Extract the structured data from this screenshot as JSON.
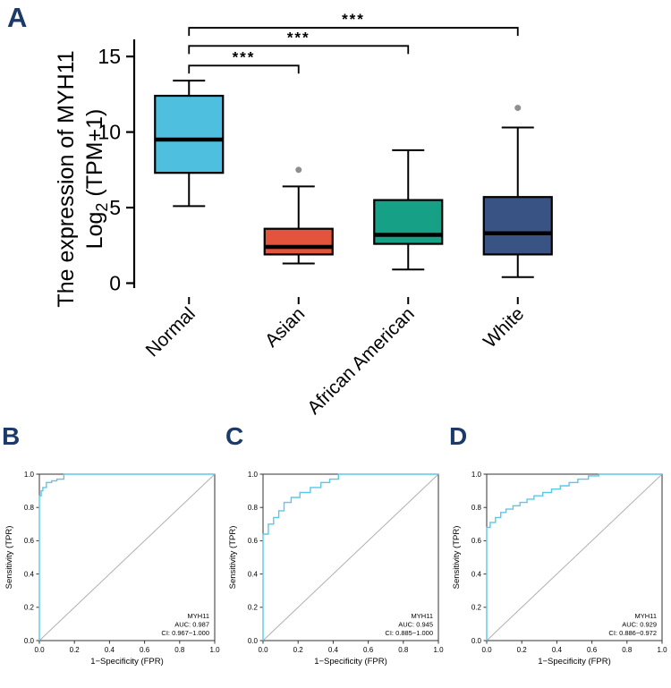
{
  "panels": {
    "a": "A",
    "b": "B",
    "c": "C",
    "d": "D"
  },
  "chart_data": [
    {
      "type": "box",
      "panel": "A",
      "ylabel_line1": "The expression of MYH11",
      "ylabel_line2": {
        "prefix": "Log",
        "sub": "2",
        "suffix": " (TPM+1)"
      },
      "categories": [
        "Normal",
        "Asian",
        "African American",
        "White"
      ],
      "colors": [
        "#4FBFDF",
        "#E2543C",
        "#16A085",
        "#3A5385"
      ],
      "yticks": [
        0,
        5,
        10,
        15
      ],
      "ylim": [
        -0.8,
        17.2
      ],
      "boxes": [
        {
          "min": 5.1,
          "q1": 7.3,
          "median": 9.5,
          "q3": 12.4,
          "max": 13.4,
          "outliers": []
        },
        {
          "min": 1.3,
          "q1": 1.9,
          "median": 2.4,
          "q3": 3.6,
          "max": 6.4,
          "outliers": [
            7.5
          ]
        },
        {
          "min": 0.9,
          "q1": 2.6,
          "median": 3.2,
          "q3": 5.5,
          "max": 8.8,
          "outliers": []
        },
        {
          "min": 0.4,
          "q1": 1.9,
          "median": 3.3,
          "q3": 5.7,
          "max": 10.3,
          "outliers": [
            11.6
          ]
        }
      ],
      "significance": [
        {
          "from": 0,
          "to": 1,
          "label": "***",
          "bracket_y": 14.4
        },
        {
          "from": 0,
          "to": 2,
          "label": "***",
          "bracket_y": 15.7
        },
        {
          "from": 0,
          "to": 3,
          "label": "***",
          "bracket_y": 16.9
        }
      ]
    },
    {
      "type": "line",
      "panel": "B",
      "xlabel": "1−Specificity (FPR)",
      "ylabel": "Sensitivity (TPR)",
      "xticks": [
        0,
        0.2,
        0.4,
        0.6,
        0.8,
        1
      ],
      "yticks": [
        0,
        0.2,
        0.4,
        0.6,
        0.8,
        1
      ],
      "xlim": [
        0,
        1
      ],
      "ylim": [
        0,
        1
      ],
      "diagonal": true,
      "curve_color": "#5BC8E8",
      "legend": {
        "title": "MYH11",
        "auc": "AUC: 0.987",
        "ci": "CI: 0.967−1.000"
      },
      "roc_points": [
        [
          0,
          0
        ],
        [
          0,
          0.87
        ],
        [
          0.01,
          0.87
        ],
        [
          0.01,
          0.9
        ],
        [
          0.02,
          0.9
        ],
        [
          0.02,
          0.92
        ],
        [
          0.04,
          0.92
        ],
        [
          0.04,
          0.95
        ],
        [
          0.07,
          0.95
        ],
        [
          0.07,
          0.96
        ],
        [
          0.1,
          0.96
        ],
        [
          0.1,
          0.97
        ],
        [
          0.14,
          0.97
        ],
        [
          0.14,
          1
        ],
        [
          1,
          1
        ]
      ]
    },
    {
      "type": "line",
      "panel": "C",
      "xlabel": "1−Specificity (FPR)",
      "ylabel": "Sensitivity (TPR)",
      "xticks": [
        0,
        0.2,
        0.4,
        0.6,
        0.8,
        1
      ],
      "yticks": [
        0,
        0.2,
        0.4,
        0.6,
        0.8,
        1
      ],
      "xlim": [
        0,
        1
      ],
      "ylim": [
        0,
        1
      ],
      "diagonal": true,
      "curve_color": "#5BC8E8",
      "legend": {
        "title": "MYH11",
        "auc": "AUC: 0.945",
        "ci": "CI: 0.885−1.000"
      },
      "roc_points": [
        [
          0,
          0
        ],
        [
          0,
          0.64
        ],
        [
          0.03,
          0.64
        ],
        [
          0.03,
          0.7
        ],
        [
          0.06,
          0.7
        ],
        [
          0.06,
          0.74
        ],
        [
          0.09,
          0.74
        ],
        [
          0.09,
          0.78
        ],
        [
          0.12,
          0.78
        ],
        [
          0.12,
          0.83
        ],
        [
          0.16,
          0.83
        ],
        [
          0.16,
          0.86
        ],
        [
          0.21,
          0.86
        ],
        [
          0.21,
          0.89
        ],
        [
          0.27,
          0.89
        ],
        [
          0.27,
          0.92
        ],
        [
          0.33,
          0.92
        ],
        [
          0.33,
          0.95
        ],
        [
          0.38,
          0.95
        ],
        [
          0.38,
          0.97
        ],
        [
          0.43,
          0.97
        ],
        [
          0.43,
          1
        ],
        [
          1,
          1
        ]
      ]
    },
    {
      "type": "line",
      "panel": "D",
      "xlabel": "1−Specificity (FPR)",
      "ylabel": "Sensitivity (TPR)",
      "xticks": [
        0,
        0.2,
        0.4,
        0.6,
        0.8,
        1
      ],
      "yticks": [
        0,
        0.2,
        0.4,
        0.6,
        0.8,
        1
      ],
      "xlim": [
        0,
        1
      ],
      "ylim": [
        0,
        1
      ],
      "diagonal": true,
      "curve_color": "#5BC8E8",
      "legend": {
        "title": "MYH11",
        "auc": "AUC: 0.929",
        "ci": "CI: 0.886−0.972"
      },
      "roc_points": [
        [
          0,
          0
        ],
        [
          0,
          0.68
        ],
        [
          0.02,
          0.68
        ],
        [
          0.02,
          0.71
        ],
        [
          0.05,
          0.71
        ],
        [
          0.05,
          0.74
        ],
        [
          0.08,
          0.74
        ],
        [
          0.08,
          0.77
        ],
        [
          0.11,
          0.77
        ],
        [
          0.11,
          0.79
        ],
        [
          0.15,
          0.79
        ],
        [
          0.15,
          0.81
        ],
        [
          0.19,
          0.81
        ],
        [
          0.19,
          0.83
        ],
        [
          0.23,
          0.83
        ],
        [
          0.23,
          0.85
        ],
        [
          0.27,
          0.85
        ],
        [
          0.27,
          0.87
        ],
        [
          0.32,
          0.87
        ],
        [
          0.32,
          0.89
        ],
        [
          0.37,
          0.89
        ],
        [
          0.37,
          0.91
        ],
        [
          0.42,
          0.91
        ],
        [
          0.42,
          0.93
        ],
        [
          0.47,
          0.93
        ],
        [
          0.47,
          0.95
        ],
        [
          0.52,
          0.95
        ],
        [
          0.52,
          0.97
        ],
        [
          0.58,
          0.97
        ],
        [
          0.58,
          0.99
        ],
        [
          0.64,
          0.99
        ],
        [
          0.64,
          1
        ],
        [
          1,
          1
        ]
      ]
    }
  ]
}
